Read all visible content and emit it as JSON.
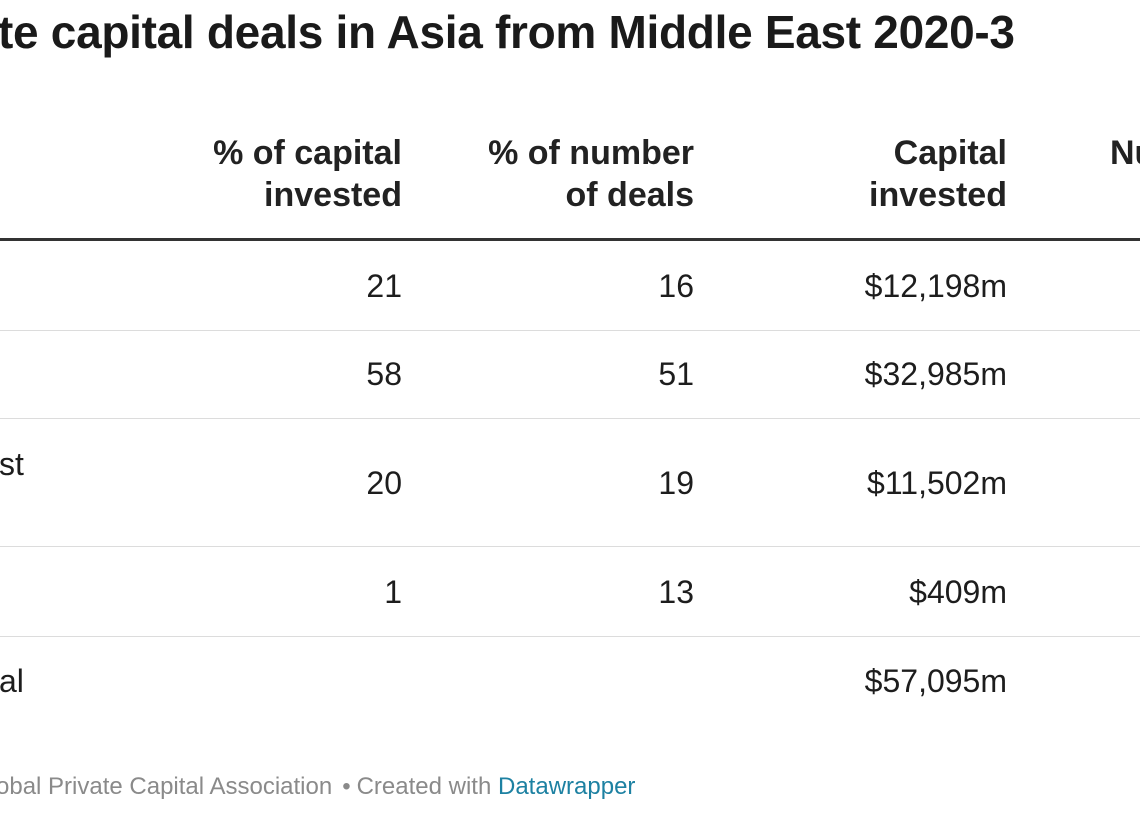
{
  "chart_data": {
    "type": "table",
    "title": "te capital deals in Asia from Middle East 2020-3",
    "columns": [
      {
        "label_line1": "% of capital",
        "label_line2": "invested"
      },
      {
        "label_line1": "% of number",
        "label_line2": "of deals"
      },
      {
        "label_line1": "Capital",
        "label_line2": "invested"
      },
      {
        "label_line1": "Nu",
        "label_line2": ""
      }
    ],
    "rows": [
      {
        "label": "",
        "capital_pct": "21",
        "deals_pct": "16",
        "capital": "$12,198m"
      },
      {
        "label": "",
        "capital_pct": "58",
        "deals_pct": "51",
        "capital": "$32,985m"
      },
      {
        "label": "st",
        "capital_pct": "20",
        "deals_pct": "19",
        "capital": "$11,502m"
      },
      {
        "label": "",
        "capital_pct": "1",
        "deals_pct": "13",
        "capital": "$409m"
      },
      {
        "label": "al",
        "capital_pct": "",
        "deals_pct": "",
        "capital": "$57,095m"
      }
    ]
  },
  "footer": {
    "source": "obal Private Capital Association",
    "separator": "•",
    "created_with": "Created with",
    "tool": "Datawrapper"
  }
}
